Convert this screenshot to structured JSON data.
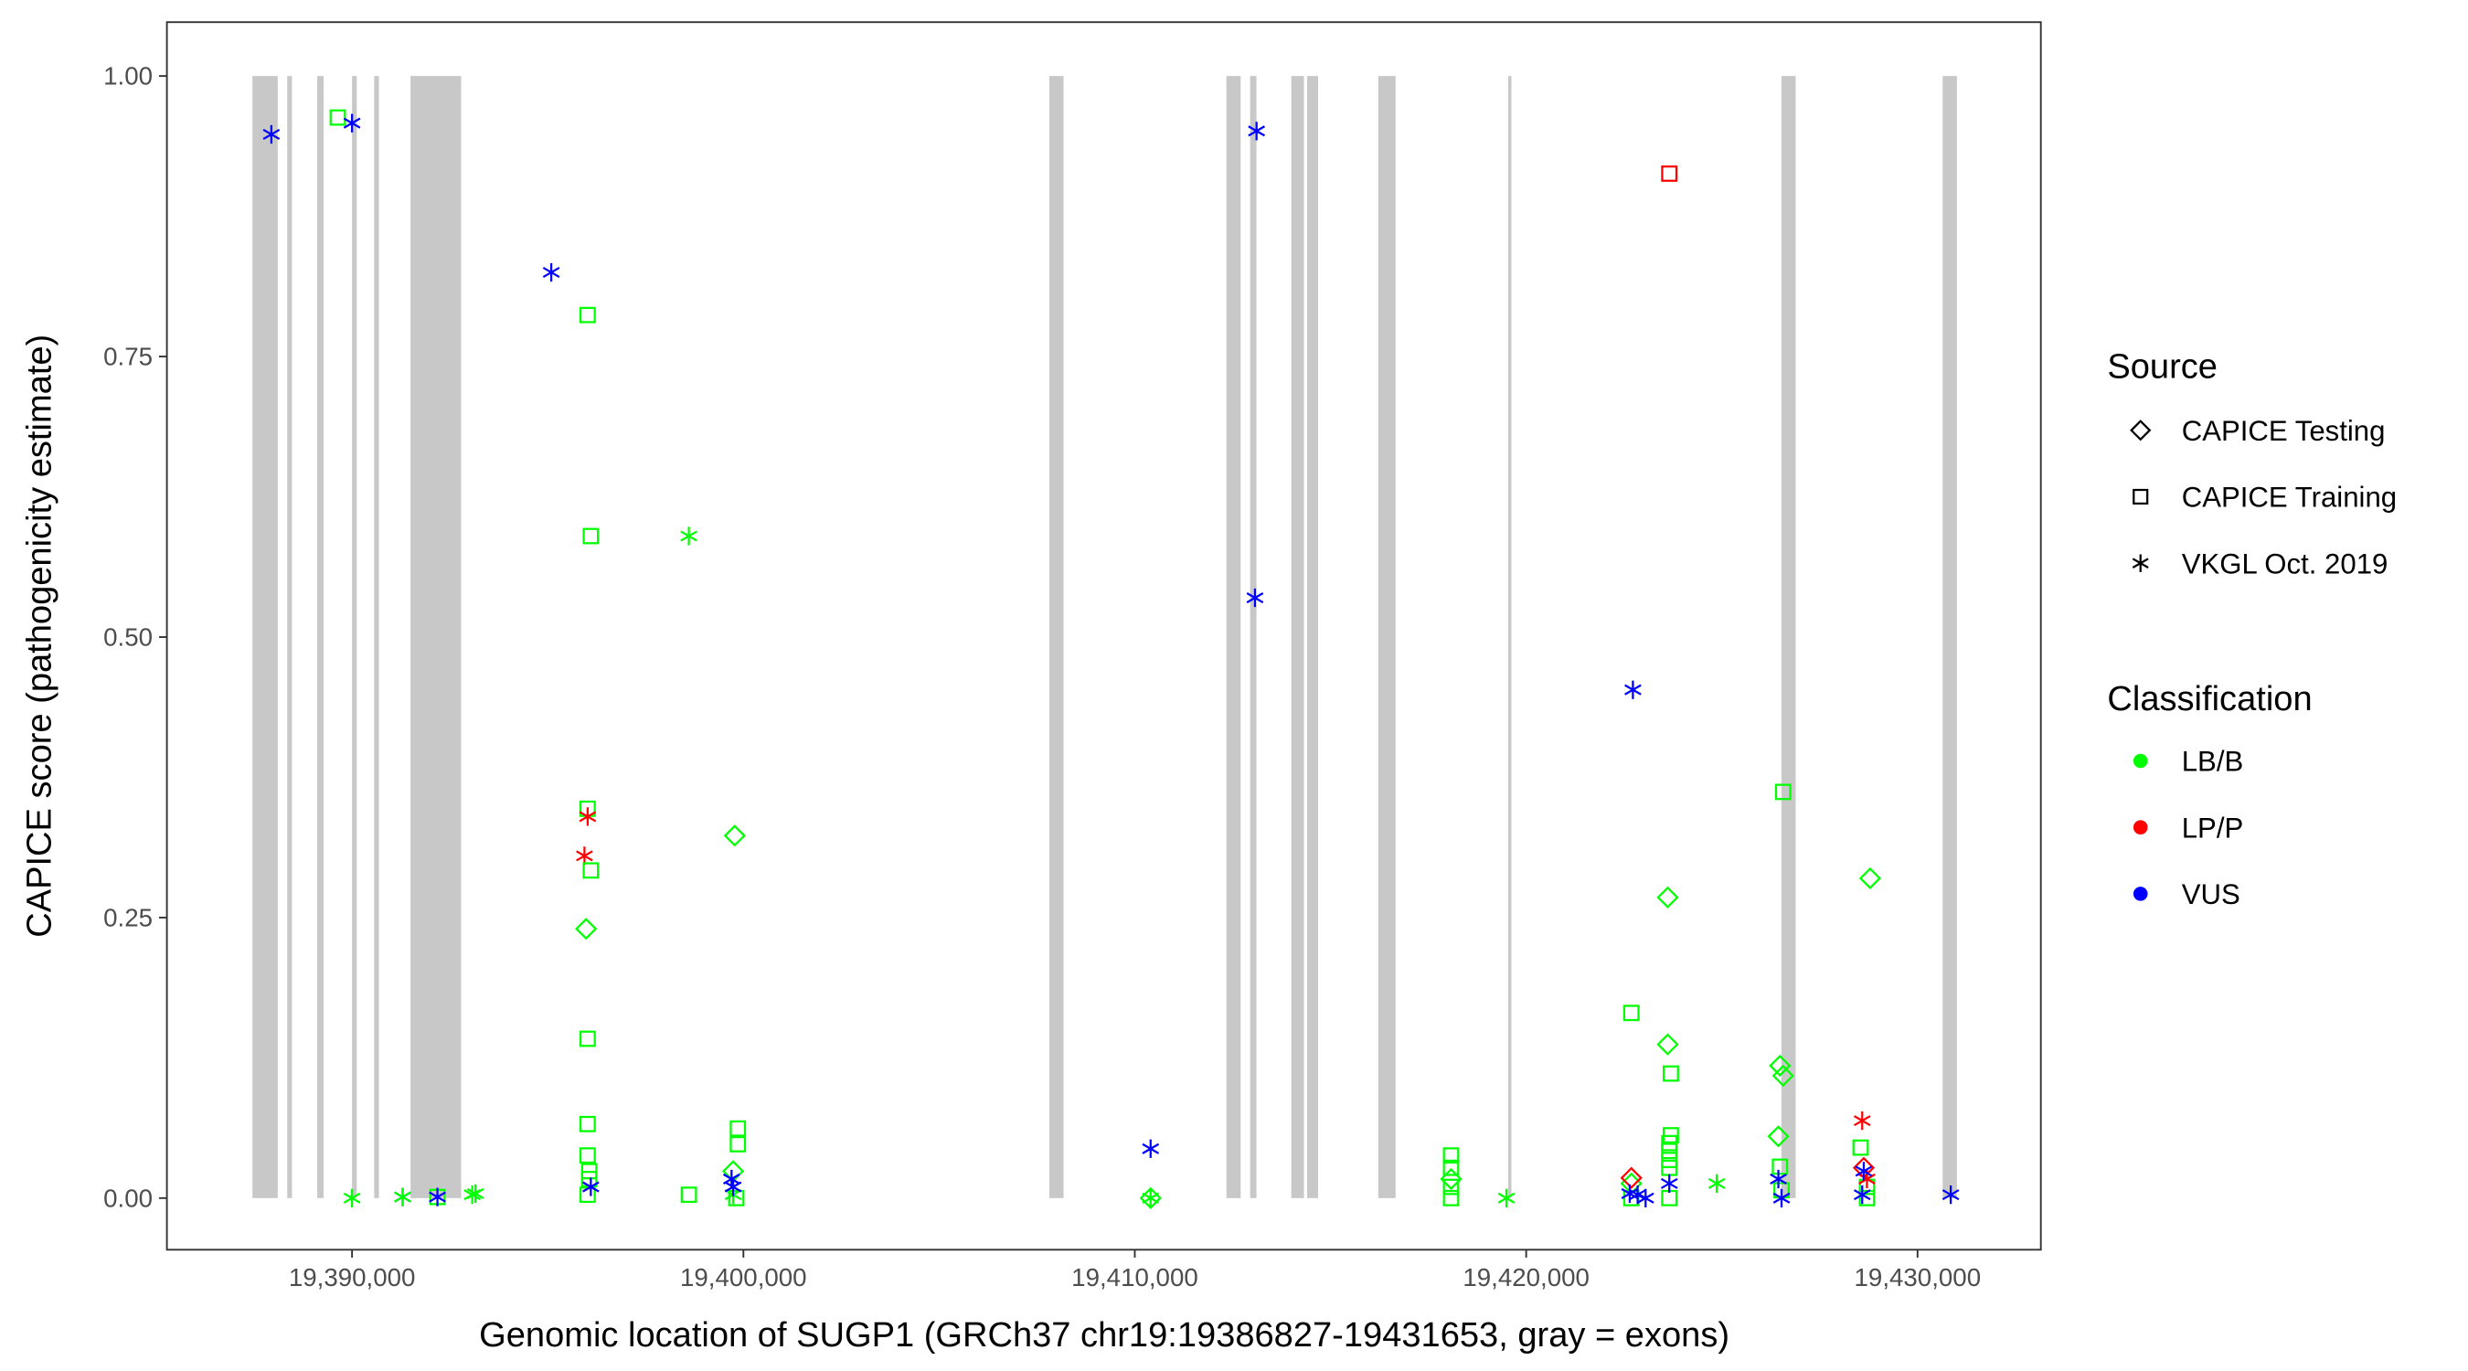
{
  "chart_data": {
    "type": "scatter",
    "xlabel": "Genomic location of SUGP1 (GRCh37 chr19:19386827-19431653, gray = exons)",
    "ylabel": "CAPICE score (pathogenicity estimate)",
    "xlim": [
      19385270,
      19433150
    ],
    "ylim": [
      -0.046,
      1.048
    ],
    "x_ticks": [
      19390000,
      19400000,
      19410000,
      19420000,
      19430000
    ],
    "x_tick_labels": [
      "19,390,000",
      "19,400,000",
      "19,410,000",
      "19,420,000",
      "19,430,000"
    ],
    "y_ticks": [
      0,
      0.25,
      0.5,
      0.75,
      1.0
    ],
    "y_tick_labels": [
      "0.00",
      "0.25",
      "0.50",
      "0.75",
      "1.00"
    ],
    "grid": false,
    "exon_color": "#c8c8c8",
    "exons": [
      [
        19387455,
        19388101
      ],
      [
        19388344,
        19388465
      ],
      [
        19389111,
        19389273
      ],
      [
        19390000,
        19390121
      ],
      [
        19390566,
        19390687
      ],
      [
        19391495,
        19392788
      ],
      [
        19407816,
        19408180
      ],
      [
        19412341,
        19412705
      ],
      [
        19412947,
        19413109
      ],
      [
        19413998,
        19414321
      ],
      [
        19414402,
        19414684
      ],
      [
        19416220,
        19416664
      ],
      [
        19419542,
        19419623
      ],
      [
        19426522,
        19426885
      ],
      [
        19430642,
        19431006
      ]
    ],
    "legend_placement": "right",
    "legend": {
      "source_title": "Source",
      "sources": [
        {
          "key": "testing",
          "label": "CAPICE Testing",
          "shape": "diamond"
        },
        {
          "key": "training",
          "label": "CAPICE Training",
          "shape": "square"
        },
        {
          "key": "vkgl",
          "label": "VKGL Oct. 2019",
          "shape": "asterisk"
        }
      ],
      "class_title": "Classification",
      "classes": [
        {
          "key": "LB/B",
          "label": "LB/B",
          "color": "#00ff00"
        },
        {
          "key": "LP/P",
          "label": "LP/P",
          "color": "#ff0000"
        },
        {
          "key": "VUS",
          "label": "VUS",
          "color": "#0000ff"
        }
      ]
    },
    "points": [
      [
        19387939,
        0.948,
        "vkgl",
        "VUS"
      ],
      [
        19389636,
        0.963,
        "training",
        "LB/B"
      ],
      [
        19390000,
        0.958,
        "vkgl",
        "VUS"
      ],
      [
        19390000,
        0.0,
        "vkgl",
        "LB/B"
      ],
      [
        19391293,
        0.001,
        "vkgl",
        "VUS"
      ],
      [
        19391293,
        0.001,
        "vkgl",
        "LB/B"
      ],
      [
        19392182,
        0.001,
        "training",
        "LB/B"
      ],
      [
        19392182,
        0.001,
        "vkgl",
        "VUS"
      ],
      [
        19393071,
        0.003,
        "vkgl",
        "LB/B"
      ],
      [
        19393152,
        0.004,
        "vkgl",
        "LB/B"
      ],
      [
        19395091,
        0.825,
        "vkgl",
        "VUS"
      ],
      [
        19396020,
        0.787,
        "training",
        "LB/B"
      ],
      [
        19396101,
        0.59,
        "training",
        "LB/B"
      ],
      [
        19398606,
        0.59,
        "vkgl",
        "LB/B"
      ],
      [
        19396020,
        0.347,
        "training",
        "LB/B"
      ],
      [
        19396020,
        0.34,
        "vkgl",
        "LP/P"
      ],
      [
        19395939,
        0.305,
        "vkgl",
        "LP/P"
      ],
      [
        19396101,
        0.292,
        "training",
        "LB/B"
      ],
      [
        19395980,
        0.24,
        "testing",
        "LB/B"
      ],
      [
        19396020,
        0.142,
        "training",
        "LB/B"
      ],
      [
        19396020,
        0.066,
        "training",
        "LB/B"
      ],
      [
        19396020,
        0.038,
        "training",
        "LB/B"
      ],
      [
        19396061,
        0.024,
        "training",
        "LB/B"
      ],
      [
        19396061,
        0.017,
        "training",
        "LB/B"
      ],
      [
        19396020,
        0.003,
        "training",
        "LB/B"
      ],
      [
        19396101,
        0.01,
        "vkgl",
        "VUS"
      ],
      [
        19398606,
        0.003,
        "training",
        "LB/B"
      ],
      [
        19399778,
        0.323,
        "testing",
        "LB/B"
      ],
      [
        19399859,
        0.062,
        "training",
        "LB/B"
      ],
      [
        19399859,
        0.048,
        "training",
        "LB/B"
      ],
      [
        19399737,
        0.024,
        "testing",
        "LB/B"
      ],
      [
        19399818,
        0.0,
        "training",
        "LB/B"
      ],
      [
        19399737,
        0.003,
        "vkgl",
        "LB/B"
      ],
      [
        19399697,
        0.017,
        "vkgl",
        "VUS"
      ],
      [
        19399737,
        0.01,
        "vkgl",
        "VUS"
      ],
      [
        19410404,
        0.044,
        "vkgl",
        "VUS"
      ],
      [
        19410404,
        0.0,
        "testing",
        "LB/B"
      ],
      [
        19410404,
        0.0,
        "vkgl",
        "LB/B"
      ],
      [
        19413111,
        0.951,
        "vkgl",
        "VUS"
      ],
      [
        19413071,
        0.535,
        "vkgl",
        "VUS"
      ],
      [
        19418081,
        0.038,
        "training",
        "LB/B"
      ],
      [
        19418081,
        0.027,
        "training",
        "LB/B"
      ],
      [
        19418081,
        0.017,
        "testing",
        "LB/B"
      ],
      [
        19418081,
        0.01,
        "training",
        "LB/B"
      ],
      [
        19418081,
        0.0,
        "training",
        "LB/B"
      ],
      [
        19419495,
        0.0,
        "vkgl",
        "LB/B"
      ],
      [
        19422727,
        0.453,
        "vkgl",
        "VUS"
      ],
      [
        19422687,
        0.165,
        "training",
        "LB/B"
      ],
      [
        19422687,
        0.013,
        "testing",
        "LB/B"
      ],
      [
        19422687,
        0.018,
        "testing",
        "LP/P"
      ],
      [
        19422687,
        0.0,
        "training",
        "LB/B"
      ],
      [
        19422646,
        0.004,
        "vkgl",
        "VUS"
      ],
      [
        19422848,
        0.003,
        "vkgl",
        "VUS"
      ],
      [
        19423051,
        0.0,
        "vkgl",
        "VUS"
      ],
      [
        19423657,
        0.913,
        "training",
        "LP/P"
      ],
      [
        19423616,
        0.268,
        "testing",
        "LB/B"
      ],
      [
        19423616,
        0.137,
        "testing",
        "LB/B"
      ],
      [
        19423697,
        0.111,
        "training",
        "LB/B"
      ],
      [
        19423697,
        0.056,
        "training",
        "LB/B"
      ],
      [
        19423657,
        0.049,
        "training",
        "LB/B"
      ],
      [
        19423657,
        0.042,
        "training",
        "LB/B"
      ],
      [
        19423657,
        0.034,
        "training",
        "LB/B"
      ],
      [
        19423657,
        0.027,
        "training",
        "LB/B"
      ],
      [
        19423657,
        0.0,
        "training",
        "LB/B"
      ],
      [
        19423657,
        0.013,
        "vkgl",
        "VUS"
      ],
      [
        19424869,
        0.013,
        "vkgl",
        "LB/B"
      ],
      [
        19426566,
        0.362,
        "training",
        "LB/B"
      ],
      [
        19426485,
        0.118,
        "testing",
        "LB/B"
      ],
      [
        19426566,
        0.109,
        "testing",
        "LB/B"
      ],
      [
        19426444,
        0.055,
        "testing",
        "LB/B"
      ],
      [
        19426485,
        0.028,
        "training",
        "LB/B"
      ],
      [
        19426525,
        0.007,
        "training",
        "LB/B"
      ],
      [
        19426444,
        0.017,
        "vkgl",
        "VUS"
      ],
      [
        19426525,
        0.0,
        "vkgl",
        "VUS"
      ],
      [
        19428788,
        0.285,
        "testing",
        "LB/B"
      ],
      [
        19428545,
        0.045,
        "training",
        "LB/B"
      ],
      [
        19428707,
        0.01,
        "training",
        "LB/B"
      ],
      [
        19428707,
        0.0,
        "training",
        "LB/B"
      ],
      [
        19428626,
        0.027,
        "testing",
        "LP/P"
      ],
      [
        19428586,
        0.069,
        "vkgl",
        "LP/P"
      ],
      [
        19428707,
        0.017,
        "vkgl",
        "LP/P"
      ],
      [
        19428626,
        0.024,
        "vkgl",
        "VUS"
      ],
      [
        19428586,
        0.003,
        "vkgl",
        "VUS"
      ],
      [
        19430848,
        0.003,
        "vkgl",
        "VUS"
      ]
    ]
  }
}
